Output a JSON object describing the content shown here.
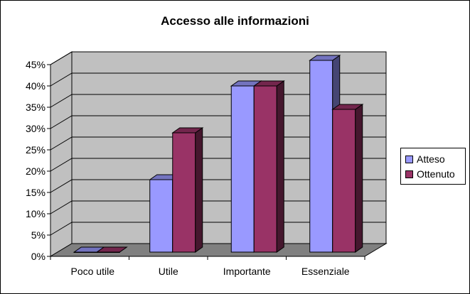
{
  "chart_data": {
    "type": "bar",
    "title": "Accesso alle informazioni",
    "categories": [
      "Poco utile",
      "Utile",
      "Importante",
      "Essenziale"
    ],
    "series": [
      {
        "name": "Atteso",
        "values": [
          0,
          17,
          39,
          45
        ],
        "color": "#9999ff"
      },
      {
        "name": "Ottenuto",
        "values": [
          0,
          28,
          39,
          33.5
        ],
        "color": "#993366"
      }
    ],
    "ylim": [
      0,
      45
    ],
    "yticks": [
      "0%",
      "5%",
      "10%",
      "15%",
      "20%",
      "25%",
      "30%",
      "35%",
      "40%",
      "45%"
    ],
    "grid": true,
    "legend_position": "right",
    "three_d": true
  }
}
